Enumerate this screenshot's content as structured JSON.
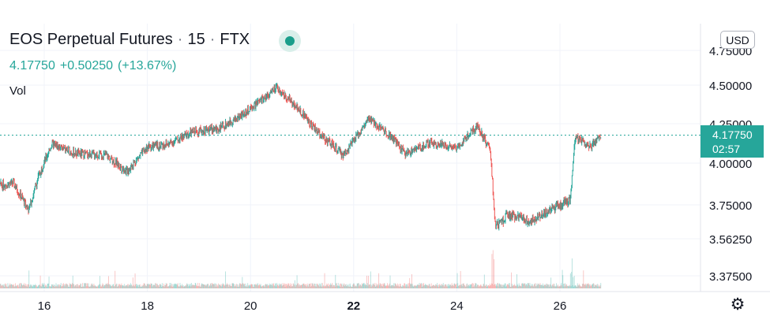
{
  "header": {
    "symbol": "EOS Perpetual Futures",
    "interval": "15",
    "exchange": "FTX",
    "separator": "·",
    "last_price": "4.17750",
    "change": "+0.50250",
    "change_pct": "(+13.67%)",
    "volume_label": "Vol"
  },
  "price_scale": {
    "currency_button": "USD",
    "last_price_label": "4.17750",
    "countdown": "02:57",
    "tick_labels": [
      "4.75000",
      "4.50000",
      "4.25000",
      "4.00000",
      "3.75000",
      "3.56250",
      "3.37500"
    ]
  },
  "time_scale": {
    "labels": [
      "16",
      "18",
      "20",
      "22",
      "24",
      "26"
    ],
    "bold_label": "22"
  },
  "colors": {
    "up": "#26a69a",
    "down": "#ef5350",
    "grid": "#f0f3fa",
    "text": "#131722",
    "price_line": "#26a69a"
  },
  "icons": {
    "settings": "gear-icon",
    "status": "market-status-dot-icon"
  },
  "chart_data": {
    "type": "candlestick",
    "symbol": "EOS Perpetual Futures",
    "interval_minutes": 15,
    "ylim": [
      3.3,
      4.8
    ],
    "last_price": 4.1775,
    "x_ticks": [
      "16",
      "18",
      "20",
      "22",
      "24",
      "26"
    ],
    "y_ticks": [
      4.75,
      4.5,
      4.25,
      4.0,
      3.75,
      3.5625,
      3.375
    ],
    "close_path": [
      {
        "day": 15.0,
        "close": 3.86
      },
      {
        "day": 15.4,
        "close": 3.88
      },
      {
        "day": 15.7,
        "close": 3.72
      },
      {
        "day": 15.9,
        "close": 3.93
      },
      {
        "day": 16.15,
        "close": 4.12
      },
      {
        "day": 16.6,
        "close": 4.06
      },
      {
        "day": 17.2,
        "close": 4.05
      },
      {
        "day": 17.6,
        "close": 3.95
      },
      {
        "day": 18.0,
        "close": 4.1
      },
      {
        "day": 18.4,
        "close": 4.12
      },
      {
        "day": 18.9,
        "close": 4.2
      },
      {
        "day": 19.4,
        "close": 4.22
      },
      {
        "day": 19.9,
        "close": 4.32
      },
      {
        "day": 20.5,
        "close": 4.48
      },
      {
        "day": 20.9,
        "close": 4.36
      },
      {
        "day": 21.3,
        "close": 4.2
      },
      {
        "day": 21.8,
        "close": 4.05
      },
      {
        "day": 22.3,
        "close": 4.28
      },
      {
        "day": 22.7,
        "close": 4.18
      },
      {
        "day": 23.0,
        "close": 4.06
      },
      {
        "day": 23.5,
        "close": 4.13
      },
      {
        "day": 24.0,
        "close": 4.1
      },
      {
        "day": 24.4,
        "close": 4.24
      },
      {
        "day": 24.65,
        "close": 4.08
      },
      {
        "day": 24.75,
        "close": 3.62
      },
      {
        "day": 25.0,
        "close": 3.7
      },
      {
        "day": 25.4,
        "close": 3.66
      },
      {
        "day": 25.8,
        "close": 3.72
      },
      {
        "day": 26.2,
        "close": 3.78
      },
      {
        "day": 26.3,
        "close": 4.17
      },
      {
        "day": 26.6,
        "close": 4.1
      },
      {
        "day": 26.8,
        "close": 4.18
      }
    ]
  }
}
